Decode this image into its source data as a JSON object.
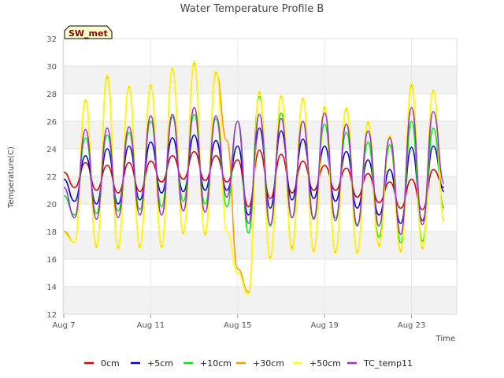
{
  "chart_data": {
    "type": "line",
    "title": "Water Temperature Profile B",
    "xlabel": "Time",
    "ylabel": "Temperature(C)",
    "site_label": "SW_met",
    "ylim": [
      12,
      32
    ],
    "y_ticks": [
      12,
      14,
      16,
      18,
      20,
      22,
      24,
      26,
      28,
      30,
      32
    ],
    "x_range_days": [
      "Aug 7",
      "Aug 25"
    ],
    "x_ticks": [
      "Aug 7",
      "Aug 11",
      "Aug 15",
      "Aug 19",
      "Aug 23"
    ],
    "grid": true,
    "legend_position": "bottom",
    "band_colors": [
      "#ffffff",
      "#f2f2f2"
    ],
    "series": [
      {
        "name": "0cm",
        "color": "#dd0000",
        "x": [
          "Aug 7",
          "Aug 7.5",
          "Aug 8",
          "Aug 8.5",
          "Aug 9",
          "Aug 9.5",
          "Aug 10",
          "Aug 10.5",
          "Aug 11",
          "Aug 11.5",
          "Aug 12",
          "Aug 12.5",
          "Aug 13",
          "Aug 13.5",
          "Aug 14",
          "Aug 14.5",
          "Aug 15",
          "Aug 15.5",
          "Aug 16",
          "Aug 16.5",
          "Aug 17",
          "Aug 17.5",
          "Aug 18",
          "Aug 18.5",
          "Aug 19",
          "Aug 19.5",
          "Aug 20",
          "Aug 20.5",
          "Aug 21",
          "Aug 21.5",
          "Aug 22",
          "Aug 22.5",
          "Aug 23",
          "Aug 23.5",
          "Aug 24",
          "Aug 24.5"
        ],
        "y": [
          22.3,
          21.2,
          23.0,
          21.0,
          22.8,
          20.8,
          23.0,
          20.9,
          23.1,
          21.6,
          23.5,
          21.8,
          23.8,
          21.7,
          23.5,
          21.6,
          23.2,
          19.8,
          23.9,
          20.4,
          23.6,
          20.8,
          23.1,
          21.0,
          22.8,
          21.0,
          22.6,
          20.5,
          22.2,
          20.1,
          21.6,
          19.7,
          21.8,
          19.6,
          22.5,
          21.2
        ]
      },
      {
        "name": "+5cm",
        "color": "#0000cc",
        "x": [
          "Aug 7",
          "Aug 7.5",
          "Aug 8",
          "Aug 8.5",
          "Aug 9",
          "Aug 9.5",
          "Aug 10",
          "Aug 10.5",
          "Aug 11",
          "Aug 11.5",
          "Aug 12",
          "Aug 12.5",
          "Aug 13",
          "Aug 13.5",
          "Aug 14",
          "Aug 14.5",
          "Aug 15",
          "Aug 15.5",
          "Aug 16",
          "Aug 16.5",
          "Aug 17",
          "Aug 17.5",
          "Aug 18",
          "Aug 18.5",
          "Aug 19",
          "Aug 19.5",
          "Aug 20",
          "Aug 20.5",
          "Aug 21",
          "Aug 21.5",
          "Aug 22",
          "Aug 22.5",
          "Aug 23",
          "Aug 23.5",
          "Aug 24",
          "Aug 24.5"
        ],
        "y": [
          21.8,
          20.2,
          23.5,
          20.0,
          24.0,
          20.0,
          24.2,
          20.3,
          24.5,
          20.8,
          24.8,
          20.9,
          25.0,
          21.0,
          24.6,
          21.0,
          24.2,
          19.2,
          25.5,
          19.7,
          25.3,
          20.3,
          24.7,
          20.4,
          24.2,
          20.2,
          23.8,
          19.7,
          23.2,
          19.2,
          22.5,
          18.6,
          24.1,
          18.8,
          24.2,
          20.9
        ]
      },
      {
        "name": "+10cm",
        "color": "#00ee00",
        "x": [
          "Aug 7",
          "Aug 7.5",
          "Aug 8",
          "Aug 8.5",
          "Aug 9",
          "Aug 9.5",
          "Aug 10",
          "Aug 10.5",
          "Aug 11",
          "Aug 11.5",
          "Aug 12",
          "Aug 12.5",
          "Aug 13",
          "Aug 13.5",
          "Aug 14",
          "Aug 14.5",
          "Aug 15",
          "Aug 15.5",
          "Aug 16",
          "Aug 16.5",
          "Aug 17",
          "Aug 17.5",
          "Aug 18",
          "Aug 18.5",
          "Aug 19",
          "Aug 19.5",
          "Aug 20",
          "Aug 20.5",
          "Aug 21",
          "Aug 21.5",
          "Aug 22",
          "Aug 22.5",
          "Aug 23",
          "Aug 23.5",
          "Aug 24",
          "Aug 24.5"
        ],
        "y": [
          20.6,
          19.2,
          24.8,
          19.3,
          25.0,
          19.5,
          25.2,
          19.6,
          26.0,
          19.8,
          26.3,
          20.2,
          26.5,
          20.0,
          26.2,
          19.8,
          26.0,
          17.9,
          27.8,
          18.4,
          26.6,
          19.0,
          26.0,
          19.0,
          25.8,
          19.0,
          25.2,
          18.5,
          24.5,
          17.6,
          24.3,
          17.2,
          26.0,
          17.3,
          25.5,
          19.7
        ]
      },
      {
        "name": "+30cm",
        "color": "#ff9900",
        "x": [
          "Aug 7",
          "Aug 7.5",
          "Aug 8",
          "Aug 8.5",
          "Aug 9",
          "Aug 9.5",
          "Aug 10",
          "Aug 10.5",
          "Aug 11",
          "Aug 11.5",
          "Aug 12",
          "Aug 12.5",
          "Aug 13",
          "Aug 13.5",
          "Aug 14",
          "Aug 14.5",
          "Aug 15",
          "Aug 15.5",
          "Aug 16",
          "Aug 16.5",
          "Aug 17",
          "Aug 17.5",
          "Aug 18",
          "Aug 18.5",
          "Aug 19",
          "Aug 19.5",
          "Aug 20",
          "Aug 20.5",
          "Aug 21",
          "Aug 21.5",
          "Aug 22",
          "Aug 22.5",
          "Aug 23",
          "Aug 23.5",
          "Aug 24",
          "Aug 24.5"
        ],
        "y": [
          18.0,
          17.2,
          27.5,
          16.9,
          29.2,
          16.8,
          28.5,
          16.9,
          28.6,
          16.9,
          29.8,
          17.9,
          30.2,
          17.8,
          29.5,
          24.6,
          15.3,
          13.6,
          28.1,
          16.1,
          27.8,
          16.8,
          27.6,
          16.6,
          27.0,
          16.5,
          26.9,
          16.5,
          25.9,
          17.0,
          24.9,
          16.6,
          28.6,
          16.8,
          28.2,
          18.8
        ]
      },
      {
        "name": "+50cm",
        "color": "#ffff00",
        "x": [
          "Aug 7",
          "Aug 7.5",
          "Aug 8",
          "Aug 8.5",
          "Aug 9",
          "Aug 9.5",
          "Aug 10",
          "Aug 10.5",
          "Aug 11",
          "Aug 11.5",
          "Aug 12",
          "Aug 12.5",
          "Aug 13",
          "Aug 13.5",
          "Aug 14",
          "Aug 14.5",
          "Aug 15",
          "Aug 15.5",
          "Aug 16",
          "Aug 16.5",
          "Aug 17",
          "Aug 17.5",
          "Aug 18",
          "Aug 18.5",
          "Aug 19",
          "Aug 19.5",
          "Aug 20",
          "Aug 20.5",
          "Aug 21",
          "Aug 21.5",
          "Aug 22",
          "Aug 22.5",
          "Aug 23",
          "Aug 23.5",
          "Aug 24",
          "Aug 24.5"
        ],
        "y": [
          17.8,
          17.2,
          27.6,
          16.8,
          29.4,
          16.7,
          28.6,
          16.8,
          28.7,
          16.8,
          29.9,
          17.8,
          30.4,
          17.7,
          29.7,
          18.0,
          15.0,
          13.4,
          28.2,
          16.0,
          27.9,
          16.6,
          27.7,
          16.5,
          27.1,
          16.4,
          27.0,
          16.4,
          26.0,
          16.9,
          25.0,
          16.5,
          28.8,
          16.7,
          28.3,
          18.7
        ]
      },
      {
        "name": "TC_temp11",
        "color": "#9933cc",
        "x": [
          "Aug 7",
          "Aug 7.5",
          "Aug 8",
          "Aug 8.5",
          "Aug 9",
          "Aug 9.5",
          "Aug 10",
          "Aug 10.5",
          "Aug 11",
          "Aug 11.5",
          "Aug 12",
          "Aug 12.5",
          "Aug 13",
          "Aug 13.5",
          "Aug 14",
          "Aug 14.5",
          "Aug 15",
          "Aug 15.5",
          "Aug 16",
          "Aug 16.5",
          "Aug 17",
          "Aug 17.5",
          "Aug 18",
          "Aug 18.5",
          "Aug 19",
          "Aug 19.5",
          "Aug 20",
          "Aug 20.5",
          "Aug 21",
          "Aug 21.5",
          "Aug 22",
          "Aug 22.5",
          "Aug 23",
          "Aug 23.5",
          "Aug 24",
          "Aug 24.5"
        ],
        "y": [
          21.2,
          19.0,
          25.4,
          18.9,
          25.5,
          19.0,
          25.6,
          19.2,
          26.4,
          19.2,
          26.5,
          19.5,
          27.0,
          19.4,
          26.4,
          20.5,
          26.0,
          18.6,
          26.5,
          18.5,
          26.2,
          19.0,
          26.0,
          18.9,
          26.6,
          18.8,
          25.8,
          18.4,
          25.3,
          18.4,
          24.8,
          17.8,
          27.0,
          18.5,
          26.7,
          21.5
        ]
      }
    ]
  }
}
